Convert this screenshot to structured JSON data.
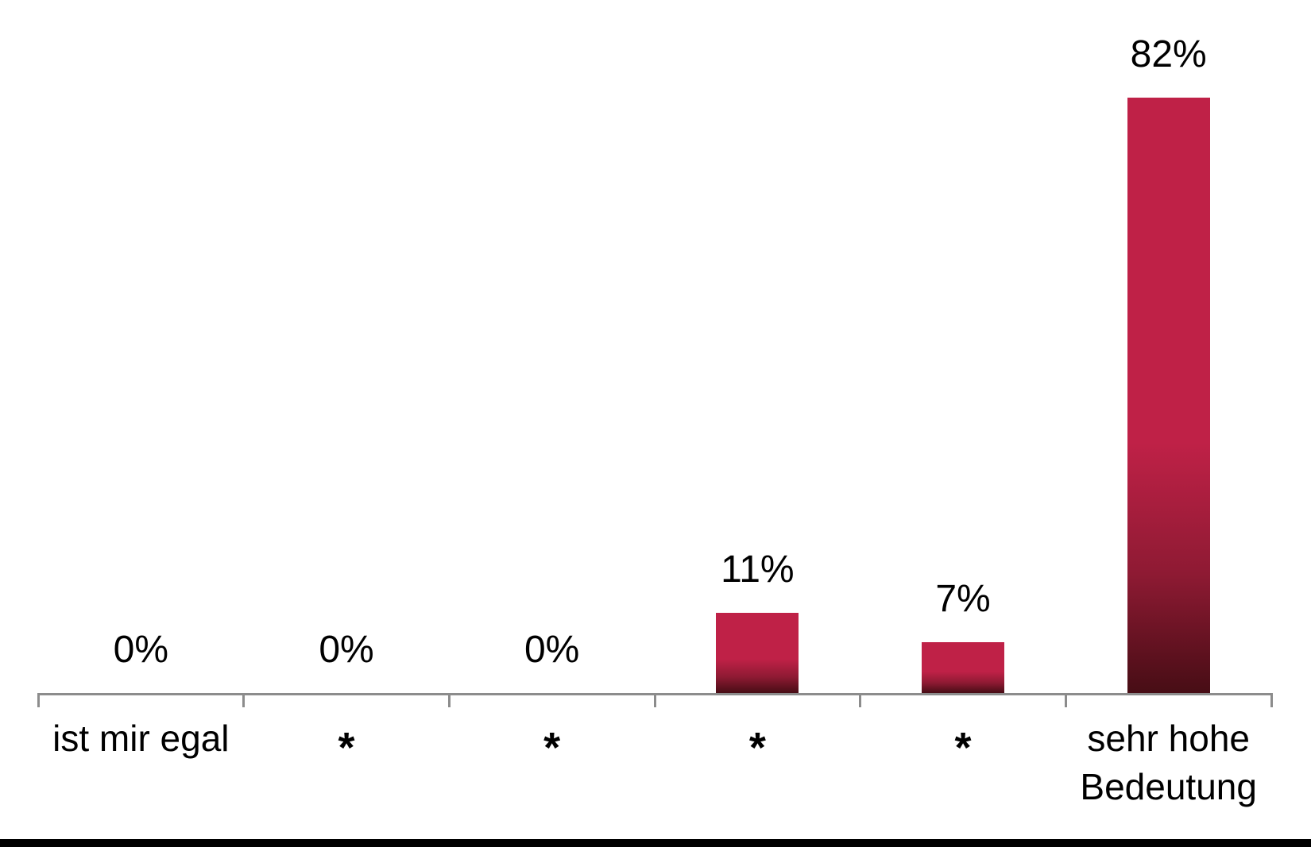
{
  "chart_data": {
    "type": "bar",
    "categories": [
      "ist mir egal",
      "*",
      "*",
      "*",
      "*",
      "sehr hohe Bedeutung"
    ],
    "values": [
      0,
      0,
      0,
      11,
      7,
      82
    ],
    "data_labels": [
      "0%",
      "0%",
      "0%",
      "11%",
      "7%",
      "82%"
    ],
    "title": "",
    "xlabel": "",
    "ylabel": "",
    "ylim": [
      0,
      95
    ],
    "gridlines": false,
    "legend": false,
    "value_axis_visible": false,
    "category_axis_visible": true,
    "colors": {
      "bar_top": "#BF2147",
      "bar_mid": "#8E1A33",
      "bar_bottom": "#470D15",
      "axis": "#8C8C8C",
      "text": "#000000",
      "footer_bar": "#000000"
    }
  }
}
